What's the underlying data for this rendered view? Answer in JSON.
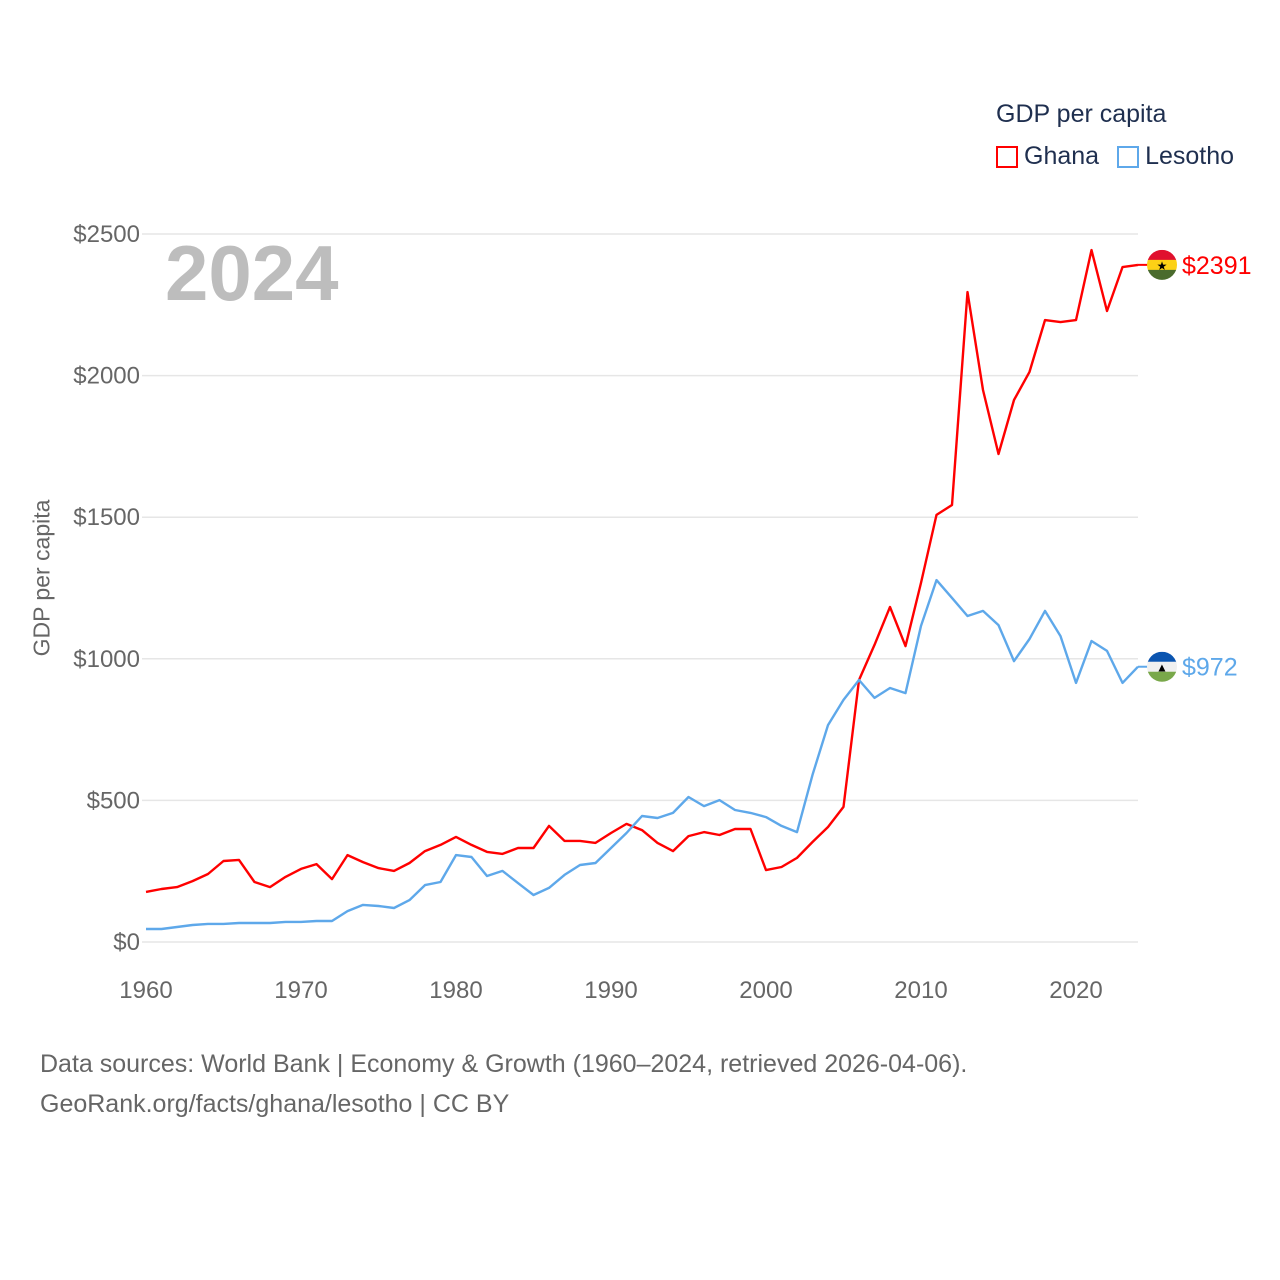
{
  "chart_data": {
    "type": "line",
    "title": "GDP per capita",
    "ylabel": "GDP per capita",
    "xlabel": "",
    "current_year": "2024",
    "xlim": [
      1960,
      2024
    ],
    "ylim": [
      0,
      2500
    ],
    "x_ticks": [
      "1960",
      "1970",
      "1980",
      "1990",
      "2000",
      "2010",
      "2020"
    ],
    "y_ticks": [
      {
        "v": 0,
        "label": "$0"
      },
      {
        "v": 500,
        "label": "$500"
      },
      {
        "v": 1000,
        "label": "$1000"
      },
      {
        "v": 1500,
        "label": "$1500"
      },
      {
        "v": 2000,
        "label": "$2000"
      },
      {
        "v": 2500,
        "label": "$2500"
      }
    ],
    "grid": true,
    "legend_placement": "top-right",
    "x_start": 1960,
    "series": [
      {
        "name": "Ghana",
        "color": "#ff0000",
        "end_label": "$2391",
        "values": [
          177,
          187,
          194,
          215,
          240,
          286,
          290,
          212,
          194,
          230,
          258,
          275,
          222,
          307,
          282,
          261,
          251,
          279,
          321,
          343,
          371,
          343,
          318,
          311,
          332,
          332,
          410,
          357,
          357,
          350,
          385,
          417,
          395,
          350,
          321,
          374,
          388,
          378,
          399,
          399,
          254,
          265,
          297,
          353,
          406,
          477,
          925,
          1049,
          1183,
          1045,
          1268,
          1508,
          1543,
          2295,
          1949,
          1723,
          1914,
          2013,
          2196,
          2189,
          2196,
          2443,
          2228,
          2383,
          2391
        ]
      },
      {
        "name": "Lesotho",
        "color": "#5ea8ea",
        "end_label": "$972",
        "values": [
          46,
          46,
          53,
          60,
          64,
          64,
          67,
          67,
          67,
          71,
          71,
          74,
          74,
          109,
          131,
          127,
          120,
          148,
          201,
          212,
          307,
          300,
          233,
          251,
          208,
          166,
          191,
          237,
          272,
          279,
          332,
          385,
          445,
          438,
          456,
          512,
          480,
          501,
          466,
          456,
          441,
          410,
          388,
          590,
          766,
          855,
          925,
          862,
          897,
          879,
          1116,
          1278,
          1215,
          1151,
          1169,
          1119,
          992,
          1070,
          1169,
          1080,
          915,
          1063,
          1028,
          915,
          972
        ]
      }
    ]
  },
  "footer": {
    "line1": "Data sources: World Bank | Economy & Growth (1960–2024, retrieved 2026-04-06).",
    "line2": "GeoRank.org/facts/ghana/lesotho | CC BY"
  }
}
